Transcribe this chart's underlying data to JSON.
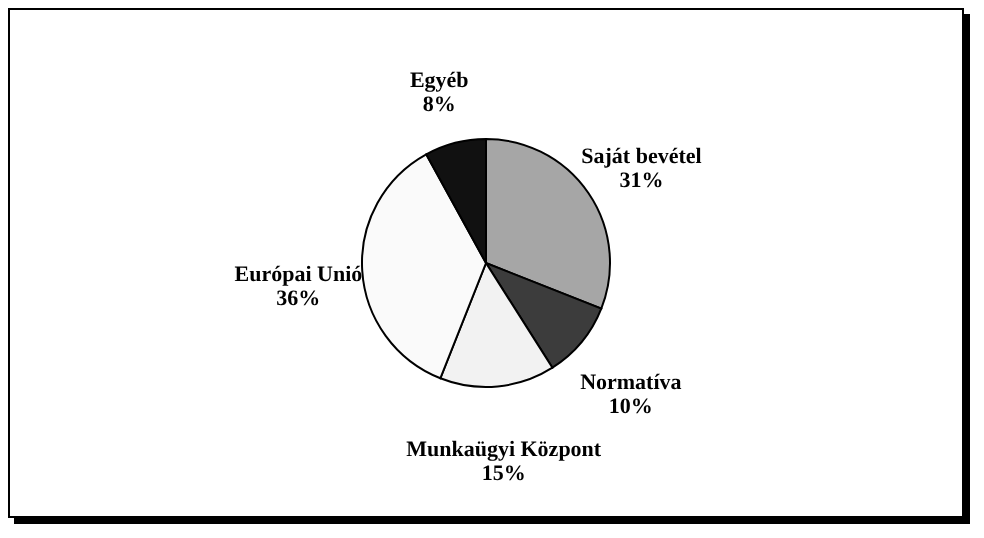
{
  "chart_data": {
    "type": "pie",
    "categories": [
      "Saját bevétel",
      "Normatíva",
      "Munkaügyi Központ",
      "Európai Unió",
      "Egyéb"
    ],
    "values": [
      31,
      10,
      15,
      36,
      8
    ],
    "value_labels": [
      "31%",
      "10%",
      "15%",
      "36%",
      "8%"
    ],
    "colors": [
      "#a6a6a6",
      "#3c3c3c",
      "#f2f2f2",
      "#fafafa",
      "#111111"
    ]
  }
}
